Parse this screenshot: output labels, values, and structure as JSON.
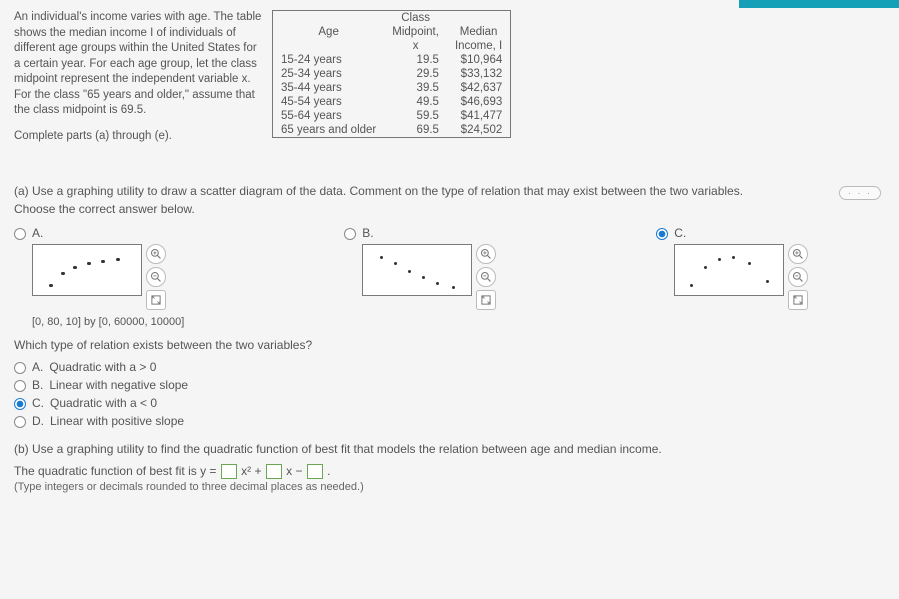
{
  "intro": {
    "p1": "An individual's income varies with age. The table shows the median income I of individuals of different age groups within the United States for a certain year. For each age group, let the class midpoint represent the independent variable x. For the class \"65 years and older,\" assume that the class midpoint is 69.5.",
    "p2": "Complete parts (a) through (e)."
  },
  "table": {
    "headers": {
      "age": "Age",
      "mid_l1": "Class",
      "mid_l2": "Midpoint,",
      "mid_l3": "x",
      "inc_l1": "Median",
      "inc_l2": "Income, I"
    },
    "rows": [
      {
        "age": "15-24 years",
        "x": "19.5",
        "i": "$10,964"
      },
      {
        "age": "25-34 years",
        "x": "29.5",
        "i": "$33,132"
      },
      {
        "age": "35-44 years",
        "x": "39.5",
        "i": "$42,637"
      },
      {
        "age": "45-54 years",
        "x": "49.5",
        "i": "$46,693"
      },
      {
        "age": "55-64 years",
        "x": "59.5",
        "i": "$41,477"
      },
      {
        "age": "65 years and older",
        "x": "69.5",
        "i": "$24,502"
      }
    ]
  },
  "skip": "· · ·",
  "partA": {
    "prompt1": "(a) Use a graphing utility to draw a scatter diagram of the data. Comment on the type of relation that may exist between the two variables.",
    "prompt2": "Choose the correct answer below.",
    "labels": {
      "a": "A.",
      "b": "B.",
      "c": "C."
    },
    "axis_note": "[0, 80, 10]  by  [0, 60000, 10000]",
    "scatterA": {
      "w": 110,
      "h": 52,
      "pts": [
        [
          18,
          40
        ],
        [
          30,
          28
        ],
        [
          42,
          22
        ],
        [
          56,
          18
        ],
        [
          70,
          16
        ],
        [
          85,
          14
        ]
      ]
    },
    "scatterB": {
      "w": 110,
      "h": 52,
      "pts": [
        [
          18,
          12
        ],
        [
          32,
          18
        ],
        [
          46,
          26
        ],
        [
          60,
          32
        ],
        [
          74,
          38
        ],
        [
          90,
          42
        ]
      ]
    },
    "scatterC": {
      "w": 110,
      "h": 52,
      "pts": [
        [
          16,
          40
        ],
        [
          30,
          22
        ],
        [
          44,
          14
        ],
        [
          58,
          12
        ],
        [
          74,
          18
        ],
        [
          92,
          36
        ]
      ]
    },
    "colors": {
      "border": "#7a7a7a",
      "dot": "#333333",
      "bg": "#ffffff"
    }
  },
  "subq": {
    "text": "Which type of relation exists between the two variables?",
    "opts": {
      "a": "Quadratic with a > 0",
      "b": "Linear with negative slope",
      "c": "Quadratic with a < 0",
      "d": "Linear with positive slope"
    },
    "lbl": {
      "a": "A.",
      "b": "B.",
      "c": "C.",
      "d": "D."
    }
  },
  "partB": {
    "prompt": "(b) Use a graphing utility to find the quadratic function of best fit that models the relation between age and median income.",
    "eq_pre": "The quadratic function of best fit is y = ",
    "eq_mid1": "x² + ",
    "eq_mid2": "x − ",
    "eq_post": ".",
    "note": "(Type integers or decimals rounded to three decimal places as needed.)"
  },
  "tools": {
    "zoom_in": "⊕",
    "zoom_out": "⊖",
    "expand": "⛶"
  }
}
